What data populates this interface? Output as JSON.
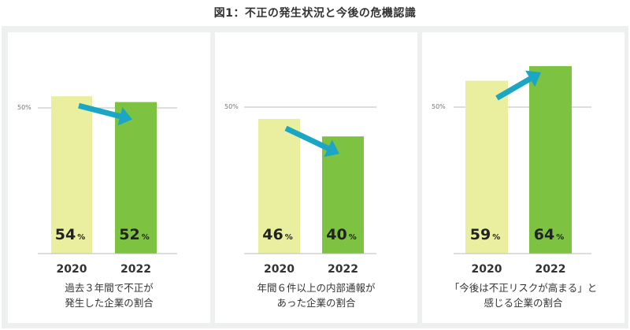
{
  "title": "図1：不正の発生状況と今後の危機認識",
  "colors": {
    "bar_2020": "#e9ef9f",
    "bar_2022": "#7ec242",
    "arrow": "#1aa6c4",
    "reference_line": "#bbbbbb",
    "background": "#eef0ef"
  },
  "chart_data": [
    {
      "type": "bar",
      "categories": [
        "2020",
        "2022"
      ],
      "values": [
        54,
        52
      ],
      "value_unit": "%",
      "reference_line": {
        "value": 50,
        "label": "50%"
      },
      "trend_arrow": "down",
      "caption": [
        "過去３年間で不正が",
        "発生した企業の割合"
      ]
    },
    {
      "type": "bar",
      "categories": [
        "2020",
        "2022"
      ],
      "values": [
        46,
        40
      ],
      "value_unit": "%",
      "reference_line": {
        "value": 50,
        "label": "50%"
      },
      "trend_arrow": "down",
      "caption": [
        "年間６件以上の内部通報が",
        "あった企業の割合"
      ]
    },
    {
      "type": "bar",
      "categories": [
        "2020",
        "2022"
      ],
      "values": [
        59,
        64
      ],
      "value_unit": "%",
      "reference_line": {
        "value": 50,
        "label": "50%"
      },
      "trend_arrow": "up",
      "caption": [
        "「今後は不正リスクが高まる」と",
        "感じる企業の割合"
      ]
    }
  ]
}
